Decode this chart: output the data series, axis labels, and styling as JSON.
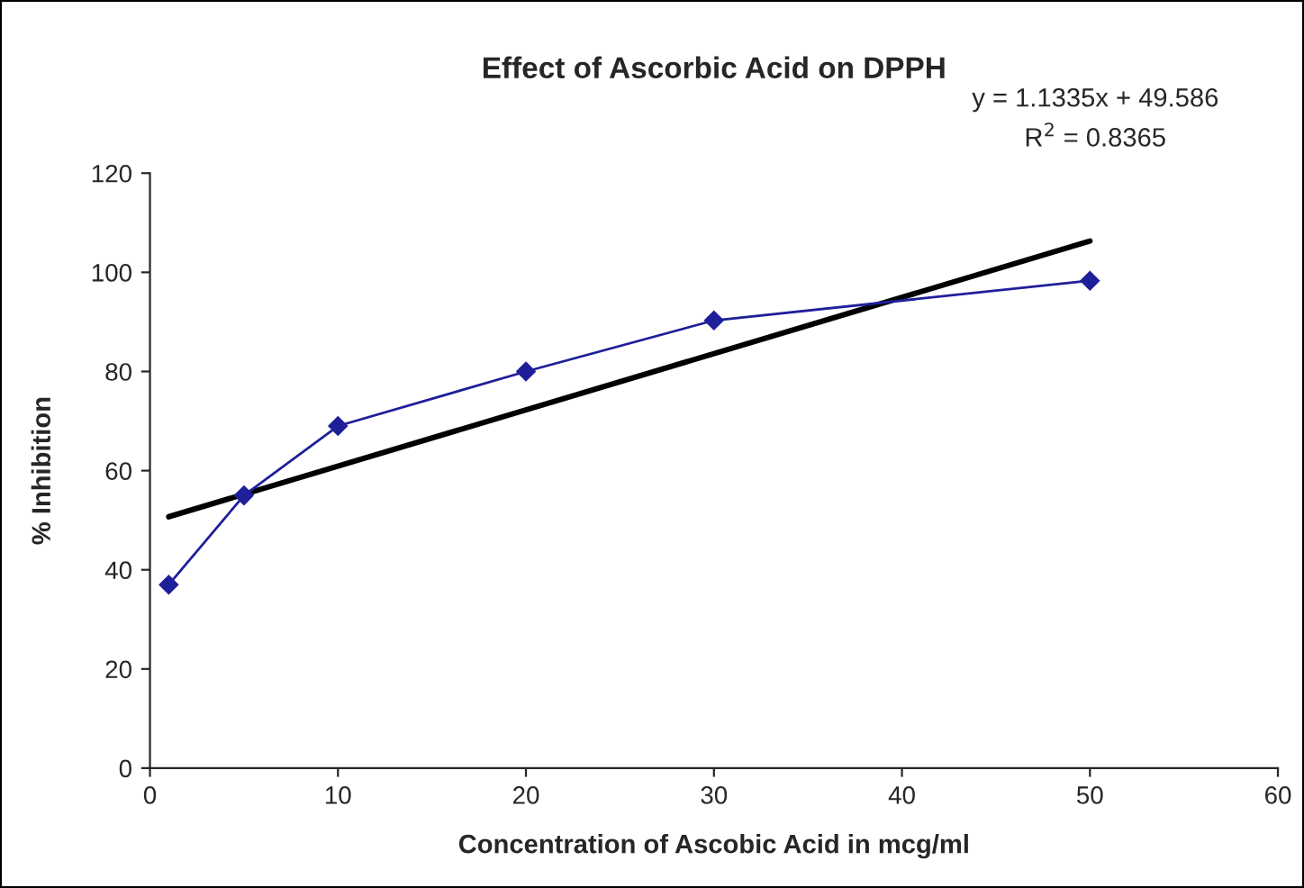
{
  "chart_data": {
    "type": "line",
    "title": "Effect of Ascorbic Acid on DPPH",
    "xlabel": "Concentration of Ascobic Acid in mcg/ml",
    "ylabel": "% Inhibition",
    "x": [
      1,
      5,
      10,
      20,
      30,
      50
    ],
    "series": [
      {
        "color": "#1f1f9a",
        "values": [
          37,
          55,
          69,
          80,
          90.3,
          98.3
        ],
        "marker": "diamond"
      },
      {
        "type": "line",
        "color": "#000000",
        "x": [
          1,
          50
        ],
        "values": [
          50.7,
          106.3
        ],
        "marker": "none"
      }
    ],
    "annotations": [
      "y = 1.1335x + 49.586",
      "R$^{2}$ = 0.8365"
    ],
    "xlim": [
      0,
      60
    ],
    "xticks": [
      0,
      10,
      20,
      30,
      40,
      50,
      60
    ],
    "ylim": [
      0,
      120
    ],
    "yticks": [
      0,
      20,
      40,
      60,
      80,
      100,
      120
    ],
    "grid": false
  }
}
